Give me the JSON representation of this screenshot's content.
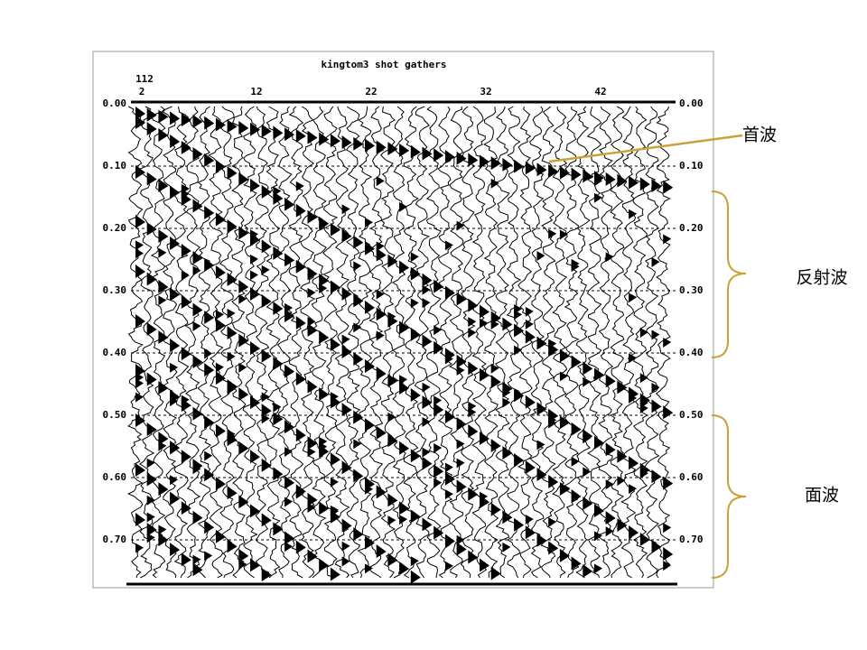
{
  "record": {
    "title": "kingtom3 shot gathers",
    "shot": "112",
    "traces": [
      "2",
      "12",
      "22",
      "32",
      "42"
    ],
    "times_left": [
      "0.00",
      "0.10",
      "0.20",
      "0.30",
      "0.40",
      "0.50",
      "0.60",
      "0.70"
    ],
    "times_right": [
      "0.00",
      "0.10",
      "0.20",
      "0.30",
      "0.40",
      "0.50",
      "0.60",
      "0.70"
    ]
  },
  "annotations": {
    "head_wave": "首波",
    "reflected_wave": "反射波",
    "surface_wave": "面波"
  }
}
